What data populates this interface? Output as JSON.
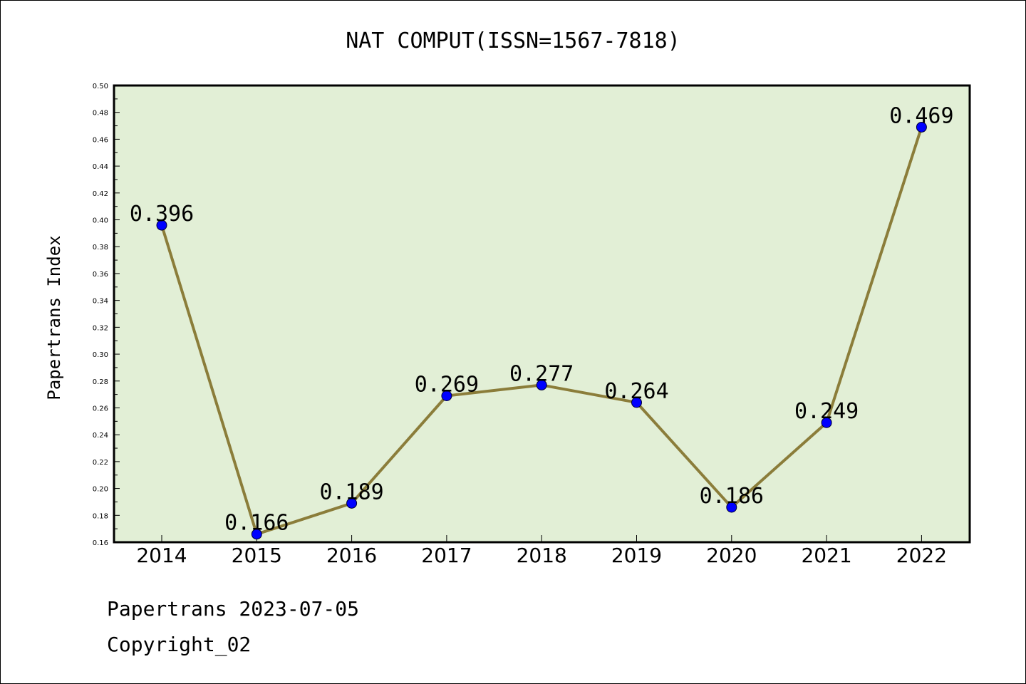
{
  "chart_data": {
    "type": "line",
    "title": "NAT COMPUT(ISSN=1567-7818)",
    "ylabel": "Papertrans Index",
    "xlabel": "",
    "categories": [
      "2014",
      "2015",
      "2016",
      "2017",
      "2018",
      "2019",
      "2020",
      "2021",
      "2022"
    ],
    "series": [
      {
        "values": [
          0.396,
          0.166,
          0.189,
          0.269,
          0.277,
          0.264,
          0.186,
          0.249,
          0.469
        ],
        "labels": [
          "0.396",
          "0.166",
          "0.189",
          "0.269",
          "0.277",
          "0.264",
          "0.186",
          "0.249",
          "0.469"
        ]
      }
    ],
    "ylim": [
      0.16,
      0.5
    ],
    "yticks": [
      "0.16",
      "0.18",
      "0.20",
      "0.22",
      "0.24",
      "0.26",
      "0.28",
      "0.30",
      "0.32",
      "0.34",
      "0.36",
      "0.38",
      "0.40",
      "0.42",
      "0.44",
      "0.46",
      "0.48",
      "0.50"
    ],
    "grid": false,
    "legend": "none",
    "colors": {
      "plot_background": "#e2efd6",
      "line": "#8b7d3a",
      "marker": "#0000ff"
    }
  },
  "footer": {
    "line1": "Papertrans 2023-07-05",
    "line2": "Copyright_02"
  }
}
